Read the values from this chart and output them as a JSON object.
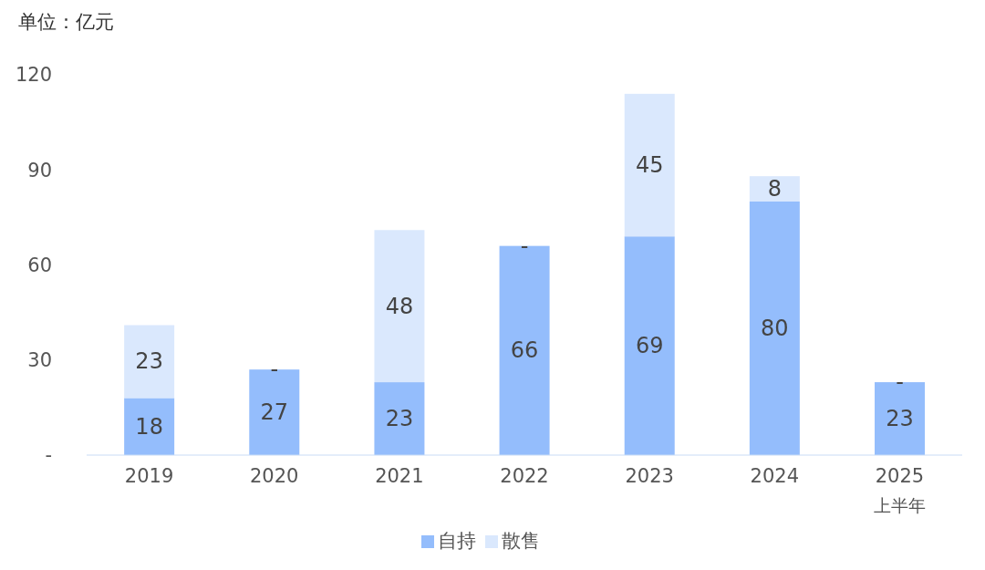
{
  "chart_data": {
    "type": "bar",
    "title": "单位：亿元",
    "categories": [
      "2019",
      "2020",
      "2021",
      "2022",
      "2023",
      "2024",
      "2025\n上半年"
    ],
    "stacked": true,
    "series": [
      {
        "name": "自持",
        "color": "#94bdfc",
        "values": [
          18,
          27,
          23,
          66,
          69,
          80,
          23
        ],
        "value_labels": [
          "18",
          "27",
          "23",
          "66",
          "69",
          "80",
          "23"
        ]
      },
      {
        "name": "散售",
        "color": "#dae8fd",
        "values": [
          23,
          0,
          48,
          0,
          45,
          8,
          0
        ],
        "value_labels": [
          "23",
          "-",
          "48",
          "-",
          "45",
          "8",
          "-"
        ]
      }
    ],
    "ylim": [
      0,
      120
    ],
    "yticks": [
      {
        "value": 0,
        "label": "-"
      },
      30,
      60,
      90,
      120
    ],
    "grid": false,
    "legend": "bottom"
  }
}
